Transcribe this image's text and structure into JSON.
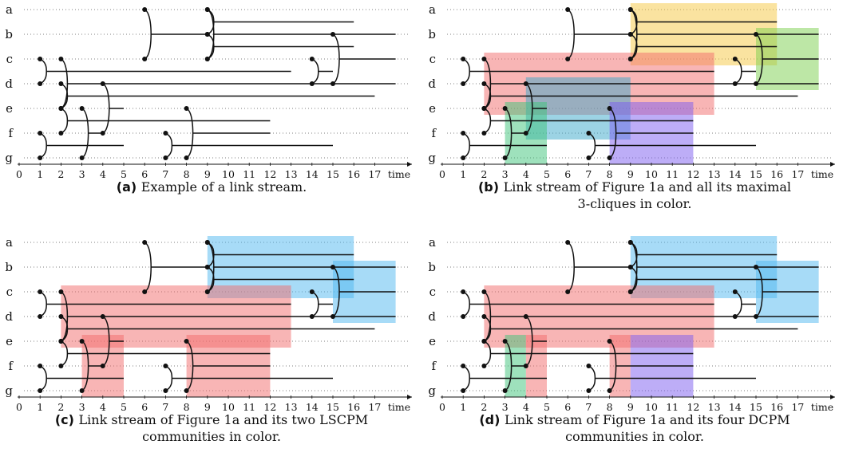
{
  "figure": {
    "node_labels": [
      "a",
      "b",
      "c",
      "d",
      "e",
      "f",
      "g"
    ],
    "time_ticks": [
      0,
      1,
      2,
      3,
      4,
      5,
      6,
      7,
      8,
      9,
      10,
      11,
      12,
      13,
      14,
      15,
      16,
      17
    ],
    "time_label": "time",
    "links": [
      {
        "nodes": [
          "a",
          "c"
        ],
        "t": 6,
        "end": 9
      },
      {
        "nodes": [
          "a",
          "b"
        ],
        "t": 9,
        "end": 16
      },
      {
        "nodes": [
          "a",
          "c"
        ],
        "t": 9,
        "end": 18
      },
      {
        "nodes": [
          "b",
          "c"
        ],
        "t": 9,
        "end": 16
      },
      {
        "nodes": [
          "b",
          "d"
        ],
        "t": 15,
        "end": 18
      },
      {
        "nodes": [
          "c",
          "d"
        ],
        "t": 1,
        "end": 13
      },
      {
        "nodes": [
          "c",
          "d"
        ],
        "t": 14,
        "end": 15
      },
      {
        "nodes": [
          "c",
          "e"
        ],
        "t": 2,
        "end": 18
      },
      {
        "nodes": [
          "d",
          "e"
        ],
        "t": 2,
        "end": 17
      },
      {
        "nodes": [
          "d",
          "f"
        ],
        "t": 4,
        "end": 5
      },
      {
        "nodes": [
          "e",
          "f"
        ],
        "t": 2,
        "end": 12
      },
      {
        "nodes": [
          "e",
          "g"
        ],
        "t": 3,
        "end": 4
      },
      {
        "nodes": [
          "e",
          "g"
        ],
        "t": 8,
        "end": 12
      },
      {
        "nodes": [
          "f",
          "g"
        ],
        "t": 1,
        "end": 5
      },
      {
        "nodes": [
          "f",
          "g"
        ],
        "t": 7,
        "end": 15
      }
    ]
  },
  "panels": [
    {
      "id": "a",
      "label": "(a)",
      "caption_lines": [
        "Example of a link stream."
      ],
      "regions": []
    },
    {
      "id": "b",
      "label": "(b)",
      "caption_lines": [
        "Link stream of Figure 1a and all its maximal",
        "3-cliques in color."
      ],
      "regions": [
        {
          "color": "#f5c842",
          "t0": 9,
          "t1": 16,
          "n0": "a",
          "n1": "c"
        },
        {
          "color": "#7ccf4e",
          "t0": 15,
          "t1": 18,
          "n0": "b",
          "n1": "d"
        },
        {
          "color": "#f26b6b",
          "t0": 2,
          "t1": 13,
          "n0": "c",
          "n1": "e"
        },
        {
          "color": "#3aa7c9",
          "t0": 4,
          "t1": 9,
          "n0": "d",
          "n1": "f"
        },
        {
          "color": "#7b5cf0",
          "t0": 8,
          "t1": 12,
          "n0": "e",
          "n1": "g"
        },
        {
          "color": "#3ec47a",
          "t0": 3,
          "t1": 5,
          "n0": "e",
          "n1": "g"
        }
      ]
    },
    {
      "id": "c",
      "label": "(c)",
      "caption_lines": [
        "Link stream of Figure 1a and its two LSCPM",
        "communities in color."
      ],
      "regions": [
        {
          "color": "#4fb7ef",
          "t0": 9,
          "t1": 16,
          "n0": "a",
          "n1": "c"
        },
        {
          "color": "#4fb7ef",
          "t0": 15,
          "t1": 18,
          "n0": "b",
          "n1": "d"
        },
        {
          "color": "#f26b6b",
          "t0": 2,
          "t1": 13,
          "n0": "c",
          "n1": "e"
        },
        {
          "color": "#f26b6b",
          "t0": 3,
          "t1": 5,
          "n0": "e",
          "n1": "g"
        },
        {
          "color": "#f26b6b",
          "t0": 8,
          "t1": 12,
          "n0": "e",
          "n1": "g"
        }
      ]
    },
    {
      "id": "d",
      "label": "(d)",
      "caption_lines": [
        "Link stream of Figure 1a and its four DCPM",
        "communities in color."
      ],
      "regions": [
        {
          "color": "#4fb7ef",
          "t0": 9,
          "t1": 16,
          "n0": "a",
          "n1": "c"
        },
        {
          "color": "#4fb7ef",
          "t0": 15,
          "t1": 18,
          "n0": "b",
          "n1": "d"
        },
        {
          "color": "#f26b6b",
          "t0": 2,
          "t1": 13,
          "n0": "c",
          "n1": "e"
        },
        {
          "color": "#f26b6b",
          "t0": 4,
          "t1": 5,
          "n0": "e",
          "n1": "g"
        },
        {
          "color": "#f26b6b",
          "t0": 8,
          "t1": 9,
          "n0": "e",
          "n1": "g"
        },
        {
          "color": "#3ec47a",
          "t0": 3,
          "t1": 4,
          "n0": "e",
          "n1": "g"
        },
        {
          "color": "#7b5cf0",
          "t0": 9,
          "t1": 12,
          "n0": "e",
          "n1": "g"
        }
      ]
    }
  ]
}
